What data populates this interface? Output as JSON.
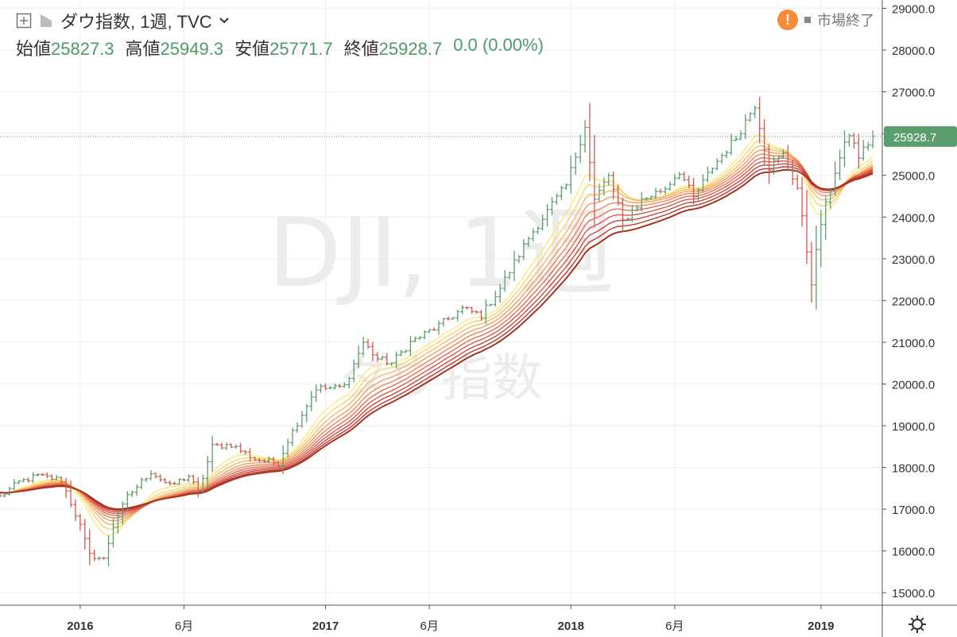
{
  "header": {
    "symbol_title": "ダウ指数, 1週, TVC",
    "ohlc": [
      {
        "label": "始値",
        "value": "25827.3"
      },
      {
        "label": "高値",
        "value": "25949.3"
      },
      {
        "label": "安値",
        "value": "25771.7"
      },
      {
        "label": "終値",
        "value": "25928.7"
      }
    ],
    "change": "0.0 (0.00%)",
    "market_status": "市場終了"
  },
  "watermark": {
    "line1": "DJI, 1週",
    "line2": "ダウ指数"
  },
  "colors": {
    "up": "#5b9e6e",
    "down": "#d05a4a",
    "accent_value": "#4e9a6b",
    "warning": "#f48c3b",
    "ribbon": [
      "#fbe97a",
      "#f9d36f",
      "#f6b867",
      "#f39c5f",
      "#ee8458",
      "#e66c50",
      "#da574a",
      "#cc4640",
      "#b93a30",
      "#a7331f"
    ]
  },
  "chart_data": {
    "type": "candlestick",
    "title": "ダウ指数, 1週, TVC",
    "ylim": [
      14700,
      29200
    ],
    "y_ticks": [
      15000,
      16000,
      17000,
      18000,
      19000,
      20000,
      21000,
      22000,
      23000,
      24000,
      25000,
      26000,
      27000,
      28000,
      29000
    ],
    "y_tick_labels": [
      "15000.0",
      "16000.0",
      "17000.0",
      "18000.0",
      "19000.0",
      "20000.0",
      "21000.0",
      "22000.0",
      "23000.0",
      "24000.0",
      "25000.0",
      "26000.0",
      "27000.0",
      "28000.0",
      "29000.0"
    ],
    "x_range": [
      "2015-09-07",
      "2019-04-08"
    ],
    "x_ticks": [
      {
        "date": "2016-01-04",
        "label": "2016",
        "bold": true
      },
      {
        "date": "2016-06-06",
        "label": "6月",
        "bold": false
      },
      {
        "date": "2017-01-02",
        "label": "2017",
        "bold": true
      },
      {
        "date": "2017-06-05",
        "label": "6月",
        "bold": false
      },
      {
        "date": "2018-01-01",
        "label": "2018",
        "bold": true
      },
      {
        "date": "2018-06-04",
        "label": "6月",
        "bold": false
      },
      {
        "date": "2019-01-07",
        "label": "2019",
        "bold": true
      }
    ],
    "last_price": {
      "value": 25928.7,
      "label": "25928.7"
    },
    "close_anchors": [
      [
        "2015-09-07",
        17300
      ],
      [
        "2015-10-05",
        17650
      ],
      [
        "2015-11-02",
        17800
      ],
      [
        "2015-12-07",
        17700
      ],
      [
        "2016-01-04",
        16600
      ],
      [
        "2016-01-18",
        15900
      ],
      [
        "2016-02-08",
        15800
      ],
      [
        "2016-02-22",
        16600
      ],
      [
        "2016-03-14",
        17300
      ],
      [
        "2016-04-18",
        17900
      ],
      [
        "2016-05-16",
        17550
      ],
      [
        "2016-06-13",
        17800
      ],
      [
        "2016-06-27",
        17400
      ],
      [
        "2016-07-18",
        18500
      ],
      [
        "2016-08-15",
        18550
      ],
      [
        "2016-09-19",
        18200
      ],
      [
        "2016-10-24",
        18100
      ],
      [
        "2016-11-07",
        18650
      ],
      [
        "2016-12-05",
        19500
      ],
      [
        "2016-12-19",
        19900
      ],
      [
        "2017-01-16",
        19900
      ],
      [
        "2017-01-30",
        19950
      ],
      [
        "2017-02-27",
        21000
      ],
      [
        "2017-03-20",
        20600
      ],
      [
        "2017-04-10",
        20500
      ],
      [
        "2017-05-08",
        21000
      ],
      [
        "2017-06-19",
        21400
      ],
      [
        "2017-07-24",
        21800
      ],
      [
        "2017-08-21",
        21650
      ],
      [
        "2017-09-18",
        22300
      ],
      [
        "2017-10-30",
        23500
      ],
      [
        "2017-12-04",
        24300
      ],
      [
        "2017-12-25",
        24750
      ],
      [
        "2018-01-22",
        26200
      ],
      [
        "2018-02-05",
        24400
      ],
      [
        "2018-02-26",
        25000
      ],
      [
        "2018-03-19",
        23900
      ],
      [
        "2018-04-16",
        24400
      ],
      [
        "2018-05-21",
        24700
      ],
      [
        "2018-06-11",
        25100
      ],
      [
        "2018-07-02",
        24450
      ],
      [
        "2018-07-30",
        25200
      ],
      [
        "2018-09-03",
        25900
      ],
      [
        "2018-10-01",
        26700
      ],
      [
        "2018-10-22",
        25200
      ],
      [
        "2018-11-12",
        25500
      ],
      [
        "2018-12-03",
        24700
      ],
      [
        "2018-12-24",
        22450
      ],
      [
        "2019-01-07",
        23850
      ],
      [
        "2019-01-28",
        25100
      ],
      [
        "2019-02-18",
        26000
      ],
      [
        "2019-03-04",
        25450
      ],
      [
        "2019-03-25",
        25928.7
      ]
    ],
    "ribbon_ema_periods": [
      10,
      13,
      16,
      19,
      22,
      25,
      28,
      31,
      34,
      37
    ],
    "ribbon_seed": 17400
  }
}
